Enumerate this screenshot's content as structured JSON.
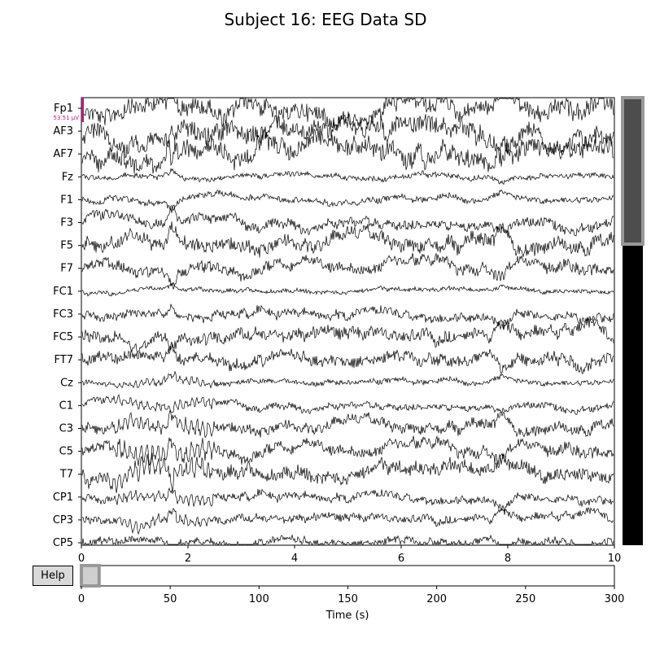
{
  "title": "Subject 16: EEG Data SD",
  "help_label": "Help",
  "scale_label": "53.51 µV",
  "colors": {
    "trace": "#000000",
    "scale_bar": "#b0207a",
    "scrollbar_thumb": "#4d4d4d",
    "scrollbar_track": "#000000",
    "overview_window": "#999999",
    "button_bg": "#d9d9d9"
  },
  "chart_data": {
    "type": "line",
    "channels": [
      "Fp1",
      "AF3",
      "AF7",
      "Fz",
      "F1",
      "F3",
      "F5",
      "F7",
      "FC1",
      "FC3",
      "FC5",
      "FT7",
      "Cz",
      "C1",
      "C3",
      "C5",
      "T7",
      "CP1",
      "CP3",
      "CP5"
    ],
    "xlim": [
      0,
      10
    ],
    "xticks": [
      0,
      2,
      4,
      6,
      8,
      10
    ],
    "overview": {
      "xlim": [
        0,
        300
      ],
      "xticks": [
        0,
        50,
        100,
        150,
        200,
        250,
        300
      ],
      "xlabel": "Time (s)",
      "window": [
        0,
        10
      ]
    },
    "channel_scroll": {
      "visible_start": 0,
      "visible_count": 20
    }
  }
}
